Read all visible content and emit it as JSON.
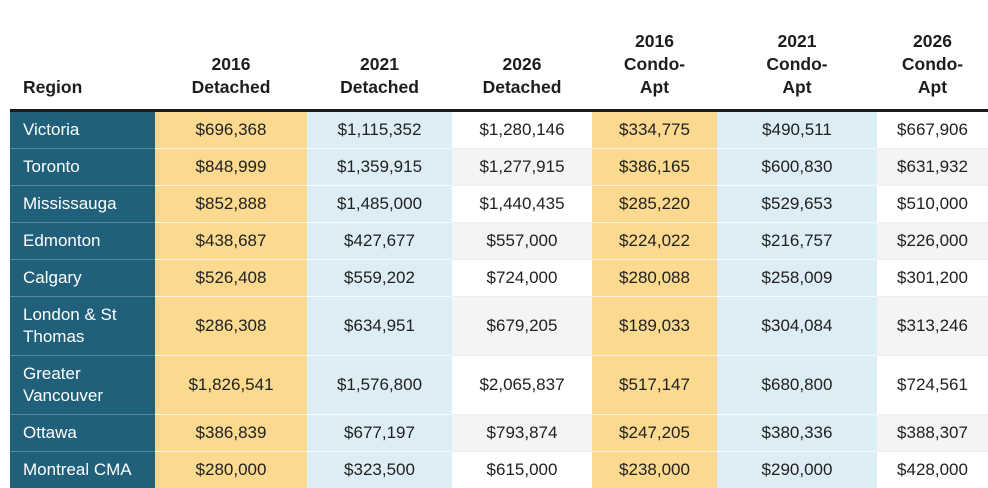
{
  "chart_data": {
    "type": "table",
    "title": "",
    "columns": [
      "Region",
      "2016 Detached",
      "2021 Detached",
      "2026 Detached",
      "2016 Condo-Apt",
      "2021 Condo-Apt",
      "2026 Condo-Apt"
    ],
    "rows": [
      {
        "region": "Victoria",
        "values": [
          "$696,368",
          "$1,115,352",
          "$1,280,146",
          "$334,775",
          "$490,511",
          "$667,906"
        ]
      },
      {
        "region": "Toronto",
        "values": [
          "$848,999",
          "$1,359,915",
          "$1,277,915",
          "$386,165",
          "$600,830",
          "$631,932"
        ]
      },
      {
        "region": "Mississauga",
        "values": [
          "$852,888",
          "$1,485,000",
          "$1,440,435",
          "$285,220",
          "$529,653",
          "$510,000"
        ]
      },
      {
        "region": "Edmonton",
        "values": [
          "$438,687",
          "$427,677",
          "$557,000",
          "$224,022",
          "$216,757",
          "$226,000"
        ]
      },
      {
        "region": "Calgary",
        "values": [
          "$526,408",
          "$559,202",
          "$724,000",
          "$280,088",
          "$258,009",
          "$301,200"
        ]
      },
      {
        "region": "London & St Thomas",
        "values": [
          "$286,308",
          "$634,951",
          "$679,205",
          "$189,033",
          "$304,084",
          "$313,246"
        ]
      },
      {
        "region": "Greater Vancouver",
        "values": [
          "$1,826,541",
          "$1,576,800",
          "$2,065,837",
          "$517,147",
          "$680,800",
          "$724,561"
        ]
      },
      {
        "region": "Ottawa",
        "values": [
          "$386,839",
          "$677,197",
          "$793,874",
          "$247,205",
          "$380,336",
          "$388,307"
        ]
      },
      {
        "region": "Montreal CMA",
        "values": [
          "$280,000",
          "$323,500",
          "$615,000",
          "$238,000",
          "$290,000",
          "$428,000"
        ]
      }
    ]
  },
  "table": {
    "header_display": [
      "Region",
      "2016\nDetached",
      "2021\nDetached",
      "2026\nDetached",
      "2016\nCondo-\nApt",
      "2021\nCondo-\nApt",
      "2026\nCondo-\nApt"
    ]
  },
  "colors": {
    "region_column_bg": "#21607a",
    "year_2016_column_bg": "#fbd98e",
    "year_2021_column_bg": "#dcedf5",
    "year_2026_stripe_bg": "#f4f4f4",
    "header_rule": "#1a1a1a",
    "header_text": "#1d1d1d",
    "cell_text": "#212121",
    "region_text": "#ffffff"
  }
}
